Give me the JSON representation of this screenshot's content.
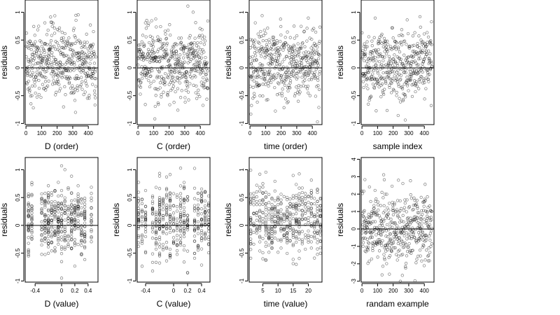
{
  "chart_data": [
    {
      "id": "d-order",
      "type": "scatter",
      "xlabel": "D (order)",
      "ylabel": "residuals",
      "xlim": [
        -5,
        462
      ],
      "ylim": [
        -1.02,
        1.22
      ],
      "xticks": [
        0,
        100,
        200,
        300,
        400
      ],
      "yticks": [
        -1.0,
        -0.5,
        0.0,
        0.5,
        1.0
      ],
      "reference_line_y": 0,
      "x_mode": "order",
      "description_points": "approx. 450 residuals against observation order ordered by D, spread roughly -0.9 to 1.15"
    },
    {
      "id": "c-order",
      "type": "scatter",
      "xlabel": "C (order)",
      "ylabel": "residuals",
      "xlim": [
        -5,
        462
      ],
      "ylim": [
        -1.02,
        1.22
      ],
      "xticks": [
        0,
        100,
        200,
        300,
        400
      ],
      "yticks": [
        -1.0,
        -0.5,
        0.0,
        0.5,
        1.0
      ],
      "reference_line_y": 0,
      "x_mode": "order"
    },
    {
      "id": "time-order",
      "type": "scatter",
      "xlabel": "time (order)",
      "ylabel": "residuals",
      "xlim": [
        -5,
        462
      ],
      "ylim": [
        -1.02,
        1.22
      ],
      "xticks": [
        0,
        100,
        200,
        300,
        400
      ],
      "yticks": [
        -1.0,
        -0.5,
        0.0,
        0.5,
        1.0
      ],
      "reference_line_y": 0,
      "x_mode": "order"
    },
    {
      "id": "sample-index",
      "type": "scatter",
      "xlabel": "sample index",
      "ylabel": "residuals",
      "xlim": [
        -5,
        462
      ],
      "ylim": [
        -1.02,
        1.22
      ],
      "xticks": [
        0,
        100,
        200,
        300,
        400
      ],
      "yticks": [
        -1.0,
        -0.5,
        0.0,
        0.5,
        1.0
      ],
      "reference_line_y": 0,
      "x_mode": "order"
    },
    {
      "id": "d-value",
      "type": "scatter",
      "xlabel": "D (value)",
      "ylabel": "residuals",
      "xlim": [
        -0.55,
        0.55
      ],
      "ylim": [
        -1.02,
        1.22
      ],
      "xticks": [
        -0.4,
        0.0,
        0.2,
        0.4
      ],
      "yticks": [
        -1.0,
        -0.5,
        0.0,
        0.5,
        1.0
      ],
      "reference_line_y": 0,
      "x_mode": "levels",
      "x_levels": [
        -0.5,
        -0.45,
        -0.3,
        -0.25,
        -0.2,
        -0.15,
        -0.1,
        -0.05,
        0.0,
        0.05,
        0.1,
        0.15,
        0.2,
        0.25,
        0.3,
        0.35,
        0.45
      ]
    },
    {
      "id": "c-value",
      "type": "scatter",
      "xlabel": "C (value)",
      "ylabel": "residuals",
      "xlim": [
        -0.52,
        0.52
      ],
      "ylim": [
        -1.02,
        1.22
      ],
      "xticks": [
        -0.4,
        0.0,
        0.2,
        0.4
      ],
      "yticks": [
        -1.0,
        -0.5,
        0.0,
        0.5,
        1.0
      ],
      "reference_line_y": 0,
      "x_mode": "levels",
      "x_levels": [
        -0.5,
        -0.45,
        -0.4,
        -0.3,
        -0.25,
        -0.2,
        -0.15,
        -0.1,
        -0.05,
        0.0,
        0.05,
        0.1,
        0.15,
        0.2,
        0.3,
        0.35,
        0.4,
        0.45,
        0.5
      ]
    },
    {
      "id": "time-value",
      "type": "scatter",
      "xlabel": "time (value)",
      "ylabel": "residuals",
      "xlim": [
        0.5,
        24.5
      ],
      "ylim": [
        -1.02,
        1.22
      ],
      "xticks": [
        5,
        10,
        15,
        20
      ],
      "yticks": [
        -1.0,
        -0.5,
        0.0,
        0.5,
        1.0
      ],
      "reference_line_y": 0,
      "x_mode": "levels",
      "x_levels": [
        1,
        2,
        3,
        4,
        5,
        6,
        7,
        8,
        9,
        10,
        11,
        12,
        13,
        14,
        15,
        16,
        17,
        18,
        19,
        20,
        21,
        22,
        23,
        24
      ]
    },
    {
      "id": "random-example",
      "type": "scatter",
      "xlabel": "randam example",
      "ylabel": "residuals",
      "xlim": [
        -5,
        462
      ],
      "ylim": [
        -3.05,
        4.1
      ],
      "xticks": [
        0,
        100,
        200,
        300,
        400
      ],
      "yticks": [
        -3,
        -2,
        -1,
        0,
        1,
        2,
        3,
        4
      ],
      "reference_line_y": 0,
      "x_mode": "order"
    }
  ]
}
